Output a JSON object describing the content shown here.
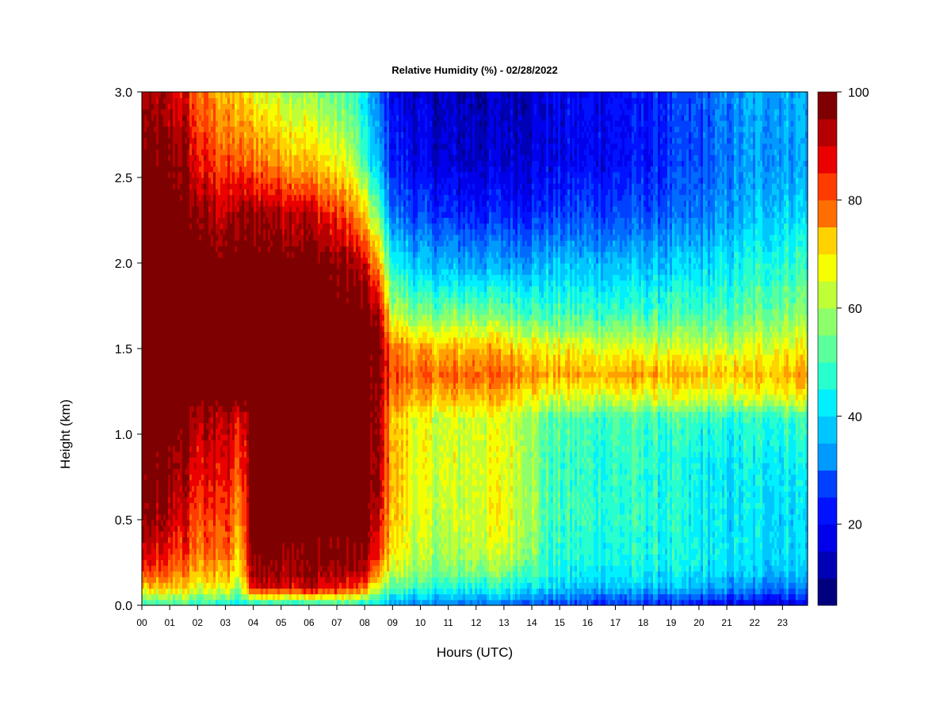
{
  "chart_data": {
    "type": "heatmap",
    "title": "Relative Humidity (%) - 02/28/2022",
    "xlabel": "Hours (UTC)",
    "ylabel": "Height (km)",
    "xlim": [
      0,
      23.9
    ],
    "ylim": [
      0,
      3.0
    ],
    "x_ticks": [
      {
        "value": 0,
        "label": "00"
      },
      {
        "value": 1,
        "label": "01"
      },
      {
        "value": 2,
        "label": "02"
      },
      {
        "value": 3,
        "label": "03"
      },
      {
        "value": 4,
        "label": "04"
      },
      {
        "value": 5,
        "label": "05"
      },
      {
        "value": 6,
        "label": "06"
      },
      {
        "value": 7,
        "label": "07"
      },
      {
        "value": 8,
        "label": "08"
      },
      {
        "value": 9,
        "label": "09"
      },
      {
        "value": 10,
        "label": "10"
      },
      {
        "value": 11,
        "label": "11"
      },
      {
        "value": 12,
        "label": "12"
      },
      {
        "value": 13,
        "label": "13"
      },
      {
        "value": 14,
        "label": "14"
      },
      {
        "value": 15,
        "label": "15"
      },
      {
        "value": 16,
        "label": "16"
      },
      {
        "value": 17,
        "label": "17"
      },
      {
        "value": 18,
        "label": "18"
      },
      {
        "value": 19,
        "label": "19"
      },
      {
        "value": 20,
        "label": "20"
      },
      {
        "value": 21,
        "label": "21"
      },
      {
        "value": 22,
        "label": "22"
      },
      {
        "value": 23,
        "label": "23"
      }
    ],
    "y_ticks": [
      {
        "value": 0.0,
        "label": "0.0"
      },
      {
        "value": 0.5,
        "label": "0.5"
      },
      {
        "value": 1.0,
        "label": "1.0"
      },
      {
        "value": 1.5,
        "label": "1.5"
      },
      {
        "value": 2.0,
        "label": "2.0"
      },
      {
        "value": 2.5,
        "label": "2.5"
      },
      {
        "value": 3.0,
        "label": "3.0"
      }
    ],
    "colorbar": {
      "min": 5,
      "max": 100,
      "levels": 19,
      "ticks": [
        {
          "value": 20,
          "label": "20"
        },
        {
          "value": 40,
          "label": "40"
        },
        {
          "value": 60,
          "label": "60"
        },
        {
          "value": 80,
          "label": "80"
        },
        {
          "value": 100,
          "label": "100"
        }
      ],
      "colors": [
        "#00007f",
        "#0000b4",
        "#0000eb",
        "#0012ff",
        "#0040ff",
        "#006cff",
        "#009aff",
        "#00c6ff",
        "#00f0ff",
        "#27ffcf",
        "#5bff9c",
        "#8dff6a",
        "#c0ff37",
        "#f5ff00",
        "#ffd200",
        "#ffa000",
        "#ff6e00",
        "#ff3c00",
        "#eb0000",
        "#b40000",
        "#7f0000"
      ]
    },
    "height_levels_km": [
      0.0,
      0.1,
      0.2,
      0.3,
      0.5,
      0.8,
      1.1,
      1.2,
      1.35,
      1.5,
      1.7,
      2.0,
      2.3,
      2.6,
      3.0
    ],
    "time_knots_h": [
      0,
      1.5,
      2,
      3,
      3.5,
      4,
      6,
      7.5,
      8,
      8.5,
      9,
      10,
      11,
      12,
      13,
      14,
      14.5,
      16,
      18,
      20,
      21,
      22,
      23.9
    ],
    "rh_profiles": [
      [
        45,
        70,
        84,
        90,
        96,
        100,
        100,
        100,
        100,
        100,
        100,
        100,
        100,
        100,
        94
      ],
      [
        50,
        70,
        80,
        84,
        90,
        95,
        100,
        100,
        100,
        100,
        100,
        100,
        100,
        96,
        90
      ],
      [
        48,
        64,
        72,
        78,
        82,
        88,
        93,
        100,
        100,
        100,
        100,
        100,
        96,
        88,
        80
      ],
      [
        45,
        68,
        76,
        82,
        86,
        90,
        94,
        100,
        100,
        100,
        100,
        100,
        92,
        82,
        74
      ],
      [
        40,
        55,
        64,
        68,
        74,
        80,
        86,
        100,
        100,
        100,
        100,
        100,
        94,
        80,
        70
      ],
      [
        42,
        90,
        97,
        99,
        100,
        100,
        100,
        100,
        100,
        100,
        100,
        100,
        96,
        80,
        66
      ],
      [
        45,
        92,
        96,
        98,
        100,
        100,
        100,
        100,
        100,
        100,
        100,
        100,
        92,
        72,
        58
      ],
      [
        45,
        85,
        94,
        98,
        100,
        100,
        100,
        100,
        100,
        100,
        100,
        96,
        80,
        62,
        50
      ],
      [
        42,
        78,
        90,
        96,
        100,
        100,
        100,
        100,
        100,
        100,
        100,
        90,
        68,
        48,
        40
      ],
      [
        40,
        60,
        74,
        84,
        90,
        94,
        94,
        95,
        95,
        98,
        94,
        74,
        52,
        36,
        30
      ],
      [
        36,
        52,
        62,
        68,
        72,
        74,
        72,
        78,
        84,
        80,
        62,
        46,
        30,
        22,
        18
      ],
      [
        32,
        48,
        56,
        60,
        62,
        64,
        64,
        72,
        80,
        74,
        54,
        38,
        24,
        16,
        14
      ],
      [
        30,
        46,
        54,
        58,
        60,
        62,
        62,
        70,
        80,
        72,
        54,
        36,
        22,
        14,
        12
      ],
      [
        30,
        46,
        56,
        62,
        64,
        64,
        64,
        72,
        82,
        74,
        56,
        36,
        22,
        14,
        12
      ],
      [
        30,
        46,
        56,
        62,
        66,
        66,
        64,
        72,
        80,
        72,
        54,
        36,
        22,
        14,
        12
      ],
      [
        28,
        44,
        52,
        58,
        60,
        60,
        60,
        68,
        78,
        70,
        52,
        36,
        22,
        16,
        14
      ],
      [
        26,
        40,
        46,
        48,
        50,
        50,
        52,
        62,
        74,
        66,
        50,
        38,
        24,
        16,
        16
      ],
      [
        24,
        38,
        44,
        46,
        48,
        48,
        50,
        62,
        74,
        66,
        50,
        38,
        26,
        18,
        18
      ],
      [
        22,
        38,
        44,
        46,
        48,
        48,
        50,
        62,
        74,
        64,
        50,
        38,
        26,
        20,
        20
      ],
      [
        18,
        36,
        42,
        44,
        44,
        44,
        48,
        62,
        72,
        62,
        50,
        40,
        30,
        26,
        26
      ],
      [
        15,
        34,
        40,
        42,
        42,
        42,
        46,
        60,
        70,
        62,
        50,
        42,
        34,
        30,
        32
      ],
      [
        15,
        32,
        40,
        42,
        42,
        44,
        48,
        62,
        72,
        64,
        54,
        46,
        38,
        34,
        36
      ],
      [
        16,
        32,
        40,
        42,
        42,
        44,
        50,
        66,
        76,
        68,
        58,
        50,
        42,
        36,
        38
      ]
    ]
  }
}
